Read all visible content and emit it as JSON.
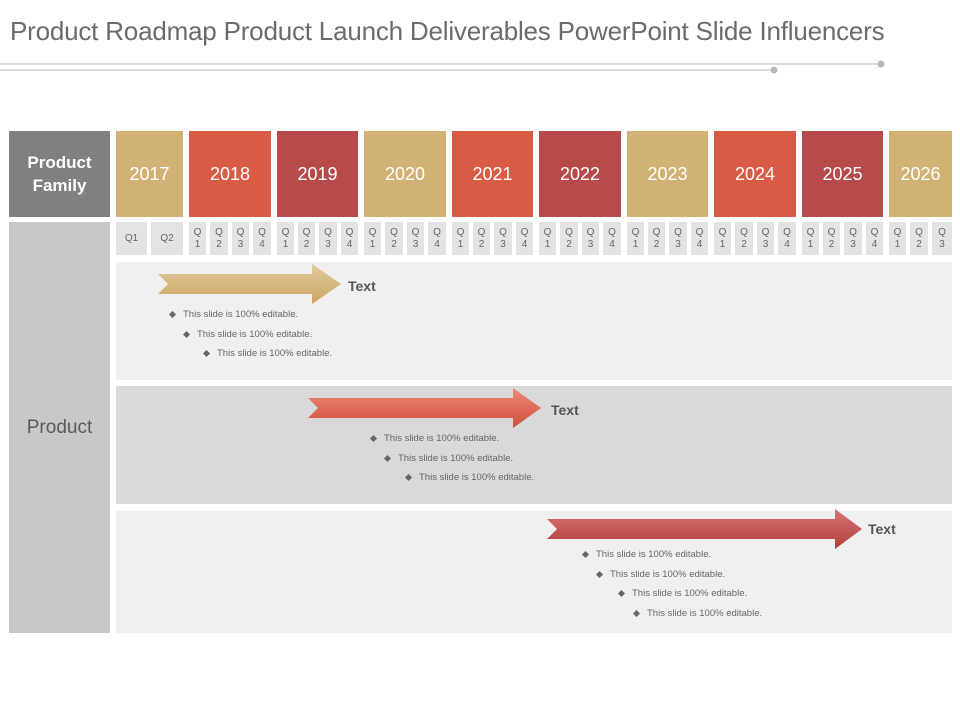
{
  "title": "Product Roadmap Product Launch Deliverables PowerPoint Slide Influencers",
  "header": {
    "product_family_line1": "Product",
    "product_family_line2": "Family",
    "years": [
      "2017",
      "2018",
      "2019",
      "2020",
      "2021",
      "2022",
      "2023",
      "2024",
      "2025",
      "2026"
    ]
  },
  "quarters": {
    "first_year": [
      "Q1",
      "Q2"
    ],
    "q1": "Q1",
    "q2": "Q2",
    "q3": "Q3",
    "q4": "Q4"
  },
  "product_label": "Product",
  "rows": [
    {
      "label": "Text",
      "bullets": [
        "This slide is 100% editable.",
        "This slide is 100% editable.",
        "This slide is 100% editable."
      ]
    },
    {
      "label": "Text",
      "bullets": [
        "This slide is 100% editable.",
        "This slide is 100% editable.",
        "This slide is 100% editable."
      ]
    },
    {
      "label": "Text",
      "bullets": [
        "This slide is 100% editable.",
        "This slide is 100% editable.",
        "This slide is 100% editable.",
        "This slide is 100% editable."
      ]
    }
  ],
  "colors": {
    "gold": "#d2b174",
    "orange": "#d85c45",
    "red": "#b74a4b",
    "grey": "#808080"
  }
}
